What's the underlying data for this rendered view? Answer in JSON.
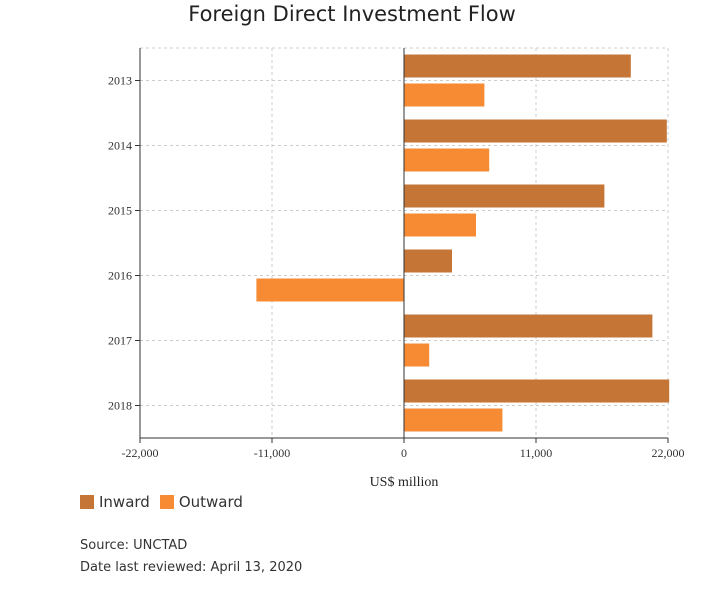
{
  "title": "Foreign Direct Investment Flow",
  "colors": {
    "inward": "#C57536",
    "outward": "#F68B34",
    "grid": "#cccccc",
    "axis": "#333333"
  },
  "legend": {
    "inward": "Inward",
    "outward": "Outward"
  },
  "source": "Source: UNCTAD",
  "reviewed": "Date last reviewed: April 13, 2020",
  "chart_data": {
    "type": "bar",
    "orientation": "horizontal",
    "title": "Foreign Direct Investment Flow",
    "xlabel": "US$ million",
    "ylabel": "",
    "categories": [
      "2013",
      "2014",
      "2015",
      "2016",
      "2017",
      "2018"
    ],
    "series": [
      {
        "name": "Inward",
        "values": [
          18900,
          21900,
          16700,
          4000,
          20700,
          22100
        ]
      },
      {
        "name": "Outward",
        "values": [
          6700,
          7100,
          6000,
          -12300,
          2100,
          8200
        ]
      }
    ],
    "xlim": [
      -22000,
      22000
    ],
    "xticks": [
      -22000,
      -11000,
      0,
      11000,
      22000
    ],
    "xtick_labels": [
      "-22,000",
      "-11,000",
      "0",
      "11,000",
      "22,000"
    ],
    "grid": true,
    "legend_position": "bottom-left"
  }
}
